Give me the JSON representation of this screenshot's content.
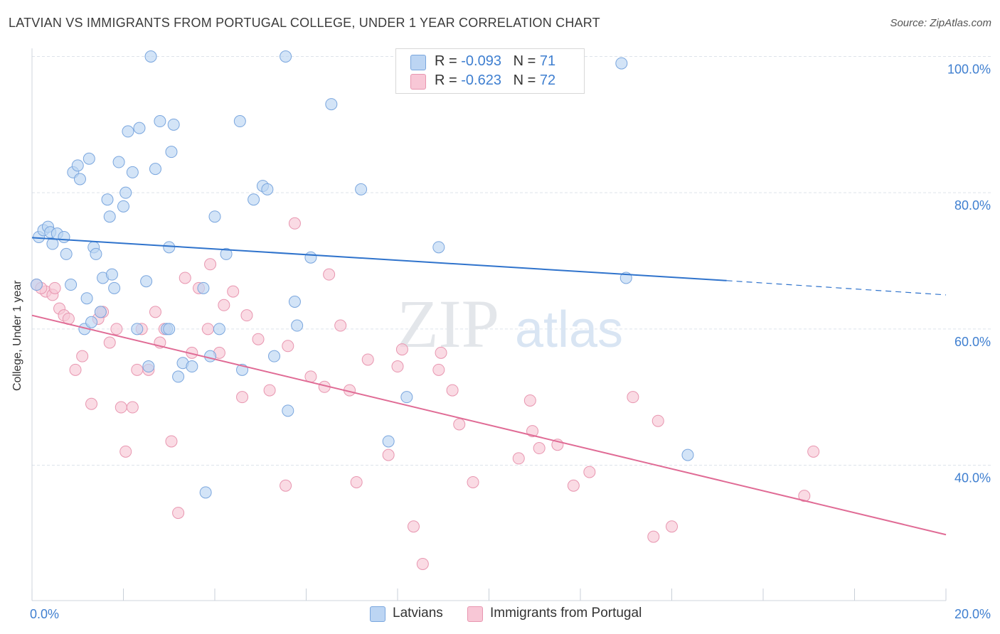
{
  "title": "LATVIAN VS IMMIGRANTS FROM PORTUGAL COLLEGE, UNDER 1 YEAR CORRELATION CHART",
  "source": "Source: ZipAtlas.com",
  "watermark": {
    "zip": "ZIP",
    "atlas": "atlas"
  },
  "legend": {
    "latvians": {
      "r_label": "R = ",
      "r_value": "-0.093",
      "n_label": "N = ",
      "n_value": "71"
    },
    "portugal": {
      "r_label": "R = ",
      "r_value": "-0.623",
      "n_label": "N = ",
      "n_value": "72"
    }
  },
  "bottom_legend": {
    "latvians": "Latvians",
    "portugal": "Immigrants from Portugal"
  },
  "colors": {
    "latvians_fill": "#bcd5f3",
    "latvians_stroke": "#7aa6de",
    "latvians_line": "#2f73cc",
    "portugal_fill": "#f8c7d6",
    "portugal_stroke": "#e896b0",
    "portugal_line": "#e06b95",
    "grid": "#dde3ea",
    "tick_label": "#3f7fd0"
  },
  "chart_data": {
    "type": "scatter",
    "title": "LATVIAN VS IMMIGRANTS FROM PORTUGAL COLLEGE, UNDER 1 YEAR CORRELATION CHART",
    "xlabel": "",
    "ylabel": "College, Under 1 year",
    "xlim": [
      0,
      20
    ],
    "ylim": [
      20,
      103
    ],
    "x_tick_labels": [
      "0.0%",
      "20.0%"
    ],
    "y_ticks": [
      40,
      60,
      80,
      100
    ],
    "y_tick_labels": [
      "40.0%",
      "60.0%",
      "80.0%",
      "100.0%"
    ],
    "grid": true,
    "series": [
      {
        "name": "Latvians",
        "points": [
          [
            0.15,
            73.5
          ],
          [
            0.25,
            74.5
          ],
          [
            0.35,
            75
          ],
          [
            0.4,
            74.2
          ],
          [
            0.45,
            72.5
          ],
          [
            0.55,
            74
          ],
          [
            0.7,
            73.5
          ],
          [
            0.75,
            71
          ],
          [
            0.85,
            66.5
          ],
          [
            0.9,
            83
          ],
          [
            1.0,
            84
          ],
          [
            1.05,
            82
          ],
          [
            1.15,
            60
          ],
          [
            1.2,
            64.5
          ],
          [
            1.25,
            85
          ],
          [
            1.35,
            72
          ],
          [
            1.4,
            71
          ],
          [
            1.5,
            62.5
          ],
          [
            1.55,
            67.5
          ],
          [
            1.65,
            79
          ],
          [
            1.7,
            76.5
          ],
          [
            1.75,
            68
          ],
          [
            1.8,
            66
          ],
          [
            1.9,
            84.5
          ],
          [
            2.0,
            78
          ],
          [
            2.05,
            80
          ],
          [
            2.1,
            89
          ],
          [
            2.2,
            83
          ],
          [
            2.3,
            60
          ],
          [
            2.35,
            89.5
          ],
          [
            2.5,
            67
          ],
          [
            2.55,
            54.5
          ],
          [
            2.6,
            100
          ],
          [
            2.7,
            83.5
          ],
          [
            2.8,
            90.5
          ],
          [
            2.95,
            60
          ],
          [
            3.0,
            72
          ],
          [
            3.05,
            86
          ],
          [
            3.1,
            90
          ],
          [
            3.2,
            53
          ],
          [
            3.3,
            55
          ],
          [
            3.5,
            54.5
          ],
          [
            3.75,
            66
          ],
          [
            3.8,
            36
          ],
          [
            3.9,
            56
          ],
          [
            4.0,
            76.5
          ],
          [
            4.1,
            60
          ],
          [
            4.25,
            71
          ],
          [
            4.55,
            90.5
          ],
          [
            4.6,
            54
          ],
          [
            4.85,
            79
          ],
          [
            5.05,
            81
          ],
          [
            5.15,
            80.5
          ],
          [
            5.3,
            56
          ],
          [
            5.55,
            100
          ],
          [
            5.6,
            48
          ],
          [
            5.75,
            64
          ],
          [
            5.8,
            60.5
          ],
          [
            6.1,
            70.5
          ],
          [
            6.55,
            93
          ],
          [
            7.2,
            80.5
          ],
          [
            7.8,
            43.5
          ],
          [
            8.2,
            50
          ],
          [
            8.9,
            72
          ],
          [
            10.4,
            100
          ],
          [
            12.9,
            99
          ],
          [
            13.0,
            67.5
          ],
          [
            14.35,
            41.5
          ],
          [
            0.1,
            66.5
          ],
          [
            3.0,
            60
          ],
          [
            1.3,
            61
          ]
        ]
      },
      {
        "name": "Immigrants from Portugal",
        "points": [
          [
            0.1,
            66.5
          ],
          [
            0.3,
            65.5
          ],
          [
            0.45,
            65
          ],
          [
            0.5,
            66
          ],
          [
            0.6,
            63
          ],
          [
            0.7,
            62
          ],
          [
            0.8,
            61.5
          ],
          [
            0.95,
            54
          ],
          [
            1.1,
            56
          ],
          [
            1.3,
            49
          ],
          [
            1.45,
            61.5
          ],
          [
            1.55,
            62.5
          ],
          [
            1.7,
            58
          ],
          [
            1.85,
            60
          ],
          [
            1.95,
            48.5
          ],
          [
            2.05,
            42
          ],
          [
            2.2,
            48.5
          ],
          [
            2.3,
            54
          ],
          [
            2.4,
            60
          ],
          [
            2.55,
            54
          ],
          [
            2.7,
            62.5
          ],
          [
            2.8,
            58
          ],
          [
            2.9,
            60
          ],
          [
            3.05,
            43.5
          ],
          [
            3.2,
            33
          ],
          [
            3.35,
            67.5
          ],
          [
            3.5,
            56.5
          ],
          [
            3.65,
            66
          ],
          [
            3.85,
            60
          ],
          [
            3.9,
            69.5
          ],
          [
            4.1,
            56.5
          ],
          [
            4.2,
            63.5
          ],
          [
            4.4,
            65.5
          ],
          [
            4.6,
            50
          ],
          [
            4.7,
            62
          ],
          [
            4.95,
            58.5
          ],
          [
            5.2,
            51
          ],
          [
            5.55,
            37
          ],
          [
            5.6,
            57.5
          ],
          [
            5.75,
            75.5
          ],
          [
            6.1,
            53
          ],
          [
            6.4,
            51.5
          ],
          [
            6.5,
            68
          ],
          [
            6.75,
            60.5
          ],
          [
            6.95,
            51
          ],
          [
            7.1,
            37.5
          ],
          [
            7.35,
            55.5
          ],
          [
            7.8,
            41.5
          ],
          [
            8.0,
            54.5
          ],
          [
            8.1,
            57
          ],
          [
            8.35,
            31
          ],
          [
            8.55,
            25.5
          ],
          [
            8.9,
            54
          ],
          [
            8.95,
            56.5
          ],
          [
            9.2,
            51
          ],
          [
            9.35,
            46
          ],
          [
            9.65,
            37.5
          ],
          [
            10.65,
            41
          ],
          [
            10.9,
            49.5
          ],
          [
            10.95,
            45
          ],
          [
            11.1,
            42.5
          ],
          [
            11.5,
            43
          ],
          [
            11.85,
            37
          ],
          [
            12.2,
            39
          ],
          [
            13.15,
            50
          ],
          [
            13.6,
            29.5
          ],
          [
            13.7,
            46.5
          ],
          [
            14.0,
            31
          ],
          [
            16.9,
            35.5
          ],
          [
            17.1,
            42
          ],
          [
            1.5,
            62.5
          ],
          [
            0.2,
            66
          ]
        ]
      }
    ],
    "trendlines": [
      {
        "name": "Latvians",
        "x": [
          0,
          15.2
        ],
        "y": [
          73.4,
          67.1
        ],
        "dashed_to": [
          20,
          65.0
        ]
      },
      {
        "name": "Immigrants from Portugal",
        "x": [
          0,
          20
        ],
        "y": [
          62.0,
          29.8
        ]
      }
    ]
  }
}
